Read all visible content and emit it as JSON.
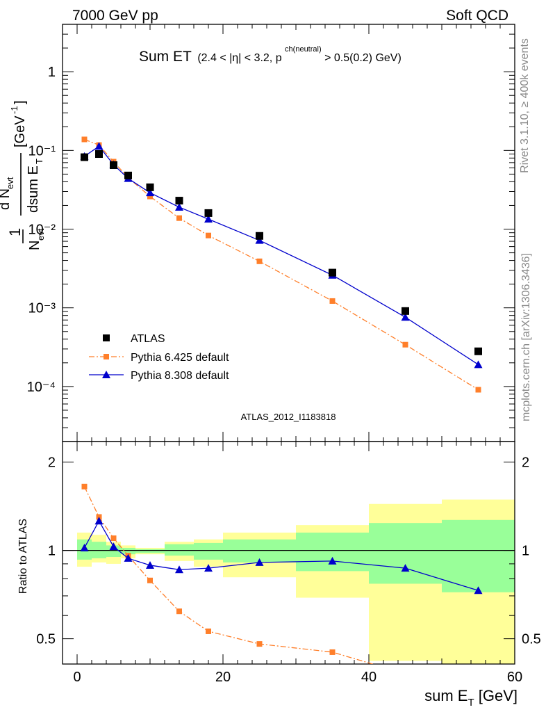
{
  "header": {
    "left": "7000 GeV pp",
    "right": "Soft QCD",
    "title_main": "Sum ET",
    "title_sub_a": "(2.4 < |η| < 3.2, p",
    "title_sup": "ch(neutral)",
    "title_sub_b": " > 0.5(0.2) GeV)",
    "side_top": "Rivet 3.1.10, ≥ 400k events",
    "side_bottom": "mcplots.cern.ch [arXiv:1306.3436]",
    "watermark": "ATLAS_2012_I1183818"
  },
  "axes": {
    "ylabel_top": "1/N_evt dN_evt/dsum E_T [GeV^-1]",
    "ylabel_bottom": "Ratio to ATLAS",
    "xlabel": "sum E_T [GeV]",
    "x_ticks": [
      "0",
      "20",
      "40",
      "60"
    ],
    "top_ticks": [
      "1",
      "10⁻¹",
      "10⁻²",
      "10⁻³",
      "10⁻⁴"
    ],
    "ratio_ticks": [
      "2",
      "1",
      "0.5"
    ]
  },
  "legend": {
    "atlas": "ATLAS",
    "py6": "Pythia 6.425 default",
    "py8": "Pythia 8.308 default"
  },
  "chart_data": {
    "type": "scatter",
    "title": "Sum ET (2.4 < |η| < 3.2, p_T^ch(neutral) > 0.5(0.2) GeV)",
    "xlabel": "sum E_T [GeV]",
    "ylabel": "1/N_evt dN_evt/dsum E_T [GeV^-1]",
    "xlim": [
      -2,
      60
    ],
    "ylim": [
      2e-05,
      4
    ],
    "yscale": "log",
    "ratio_ylabel": "Ratio to ATLAS",
    "ratio_ylim": [
      0.41,
      2.35
    ],
    "ratio_yscale": "log",
    "x": [
      1,
      3,
      5,
      7,
      10,
      14,
      18,
      25,
      35,
      45,
      55
    ],
    "series": [
      {
        "name": "ATLAS",
        "color": "#000000",
        "marker": "square",
        "values": [
          0.082,
          0.09,
          0.065,
          0.048,
          0.034,
          0.023,
          0.016,
          0.0082,
          0.0028,
          0.00091,
          0.00028
        ]
      },
      {
        "name": "Pythia 6.425 default",
        "color": "#ff7f2a",
        "marker": "square",
        "line": "dashdot",
        "values": [
          0.138,
          0.117,
          0.072,
          0.045,
          0.026,
          0.0138,
          0.0083,
          0.0039,
          0.00122,
          0.00034,
          9.1e-05
        ]
      },
      {
        "name": "Pythia 8.308 default",
        "color": "#0000cc",
        "marker": "triangle",
        "line": "solid",
        "values": [
          0.084,
          0.113,
          0.066,
          0.044,
          0.029,
          0.019,
          0.0134,
          0.0072,
          0.0026,
          0.00076,
          0.00019
        ]
      }
    ],
    "ratio": [
      {
        "name": "Pythia 6.425 default",
        "values": [
          1.65,
          1.3,
          1.1,
          0.96,
          0.79,
          0.62,
          0.53,
          0.48,
          0.45,
          0.38,
          0.33
        ]
      },
      {
        "name": "Pythia 8.308 default",
        "values": [
          1.02,
          1.26,
          1.03,
          0.94,
          0.89,
          0.86,
          0.87,
          0.91,
          0.92,
          0.87,
          0.73
        ]
      }
    ],
    "ratio_bands": [
      {
        "x": [
          0,
          2
        ],
        "inner": [
          0.93,
          1.09
        ],
        "outer": [
          0.88,
          1.15
        ]
      },
      {
        "x": [
          2,
          4
        ],
        "inner": [
          0.94,
          1.07
        ],
        "outer": [
          0.91,
          1.13
        ]
      },
      {
        "x": [
          4,
          6
        ],
        "inner": [
          0.95,
          1.04
        ],
        "outer": [
          0.9,
          1.07
        ]
      },
      {
        "x": [
          6,
          8
        ],
        "inner": [
          0.97,
          1.02
        ],
        "outer": [
          0.94,
          1.04
        ]
      },
      {
        "x": [
          8,
          12
        ],
        "inner": [
          0.98,
          1.01
        ],
        "outer": [
          0.97,
          1.02
        ]
      },
      {
        "x": [
          12,
          16
        ],
        "inner": [
          0.96,
          1.05
        ],
        "outer": [
          0.92,
          1.07
        ]
      },
      {
        "x": [
          16,
          20
        ],
        "inner": [
          0.93,
          1.06
        ],
        "outer": [
          0.88,
          1.09
        ]
      },
      {
        "x": [
          20,
          30
        ],
        "inner": [
          0.91,
          1.09
        ],
        "outer": [
          0.81,
          1.15
        ]
      },
      {
        "x": [
          30,
          40
        ],
        "inner": [
          0.85,
          1.15
        ],
        "outer": [
          0.69,
          1.22
        ]
      },
      {
        "x": [
          40,
          50
        ],
        "inner": [
          0.77,
          1.24
        ],
        "outer": [
          0.42,
          1.44
        ]
      },
      {
        "x": [
          50,
          60
        ],
        "inner": [
          0.72,
          1.27
        ],
        "outer": [
          0.3,
          1.49
        ]
      }
    ]
  }
}
